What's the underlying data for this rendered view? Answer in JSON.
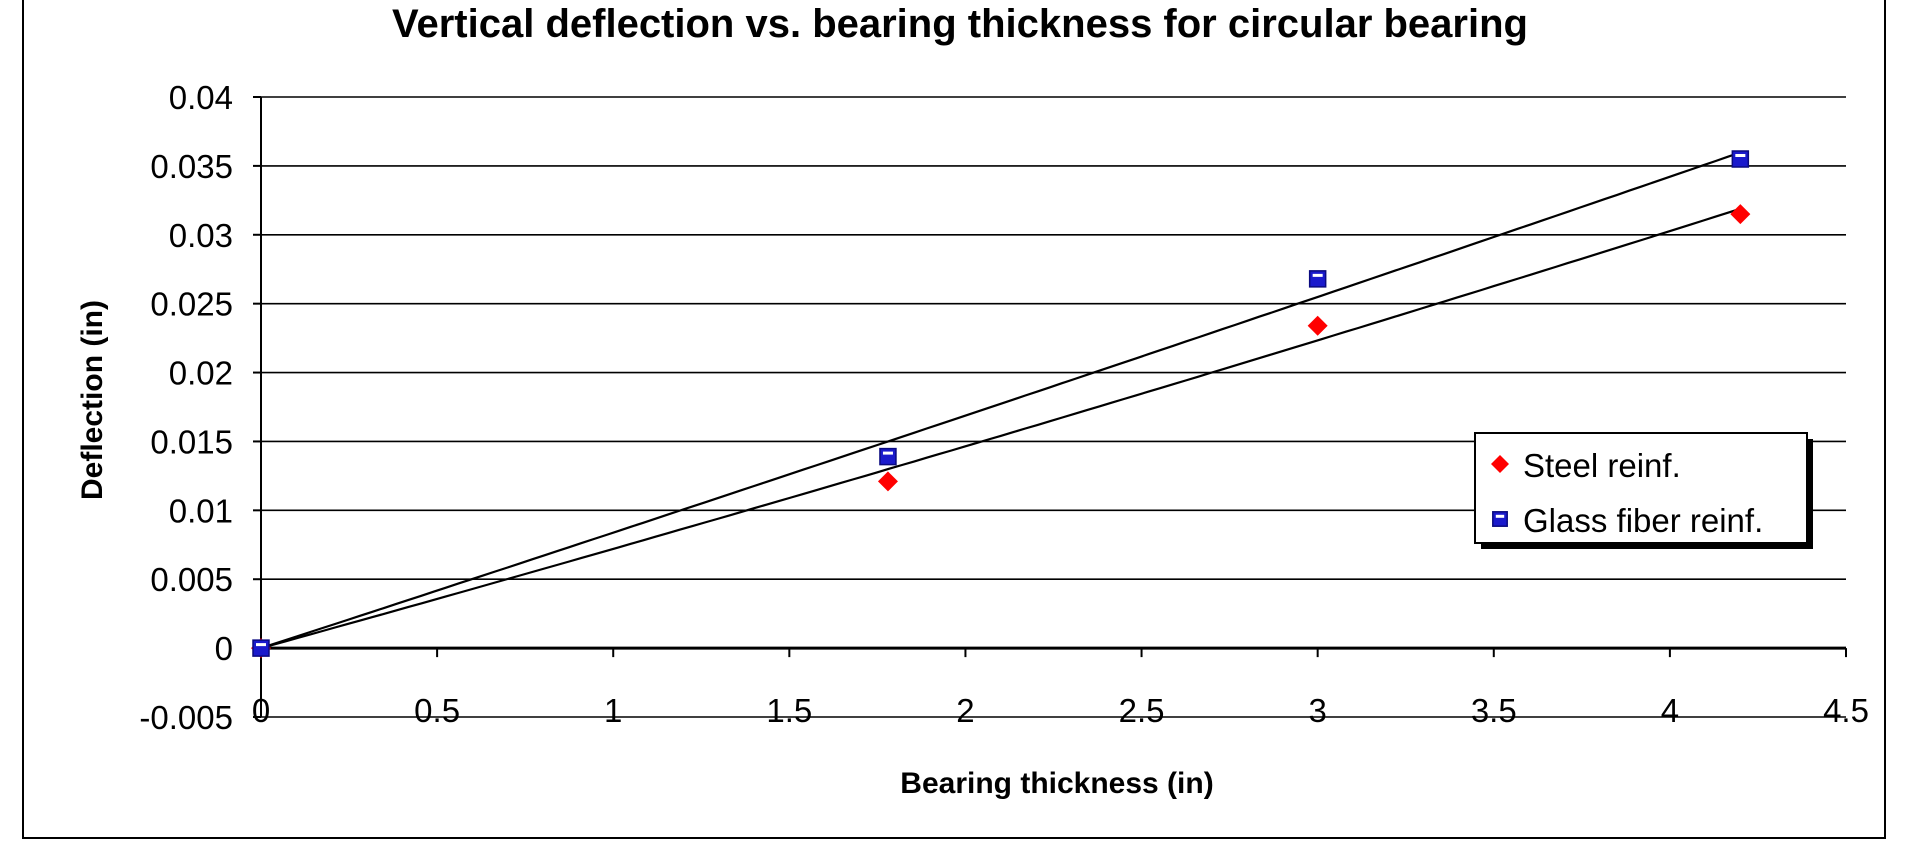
{
  "chart_data": {
    "type": "scatter",
    "title": "Vertical deflection vs. bearing thickness for circular bearing",
    "xlabel": "Bearing thickness (in)",
    "ylabel": "Deflection (in)",
    "xlim": [
      0,
      4.5
    ],
    "ylim": [
      -0.005,
      0.04
    ],
    "x_ticks": [
      "0",
      "0.5",
      "1",
      "1.5",
      "2",
      "2.5",
      "3",
      "3.5",
      "4",
      "4.5"
    ],
    "y_ticks": [
      "-0.005",
      "0",
      "0.005",
      "0.01",
      "0.015",
      "0.02",
      "0.025",
      "0.03",
      "0.035",
      "0.04"
    ],
    "grid": "horizontal",
    "legend_position": "right",
    "trendline": "polynomial",
    "series": [
      {
        "name": "Steel reinf.",
        "marker": "diamond",
        "color": "#ff0000",
        "x": [
          0,
          1.78,
          3.0,
          4.2
        ],
        "y": [
          0,
          0.0121,
          0.0234,
          0.0315
        ]
      },
      {
        "name": "Glass fiber reinf.",
        "marker": "square",
        "color": "#1a1acc",
        "x": [
          0,
          1.78,
          3.0,
          4.2
        ],
        "y": [
          0,
          0.0139,
          0.0268,
          0.0355
        ]
      }
    ]
  }
}
